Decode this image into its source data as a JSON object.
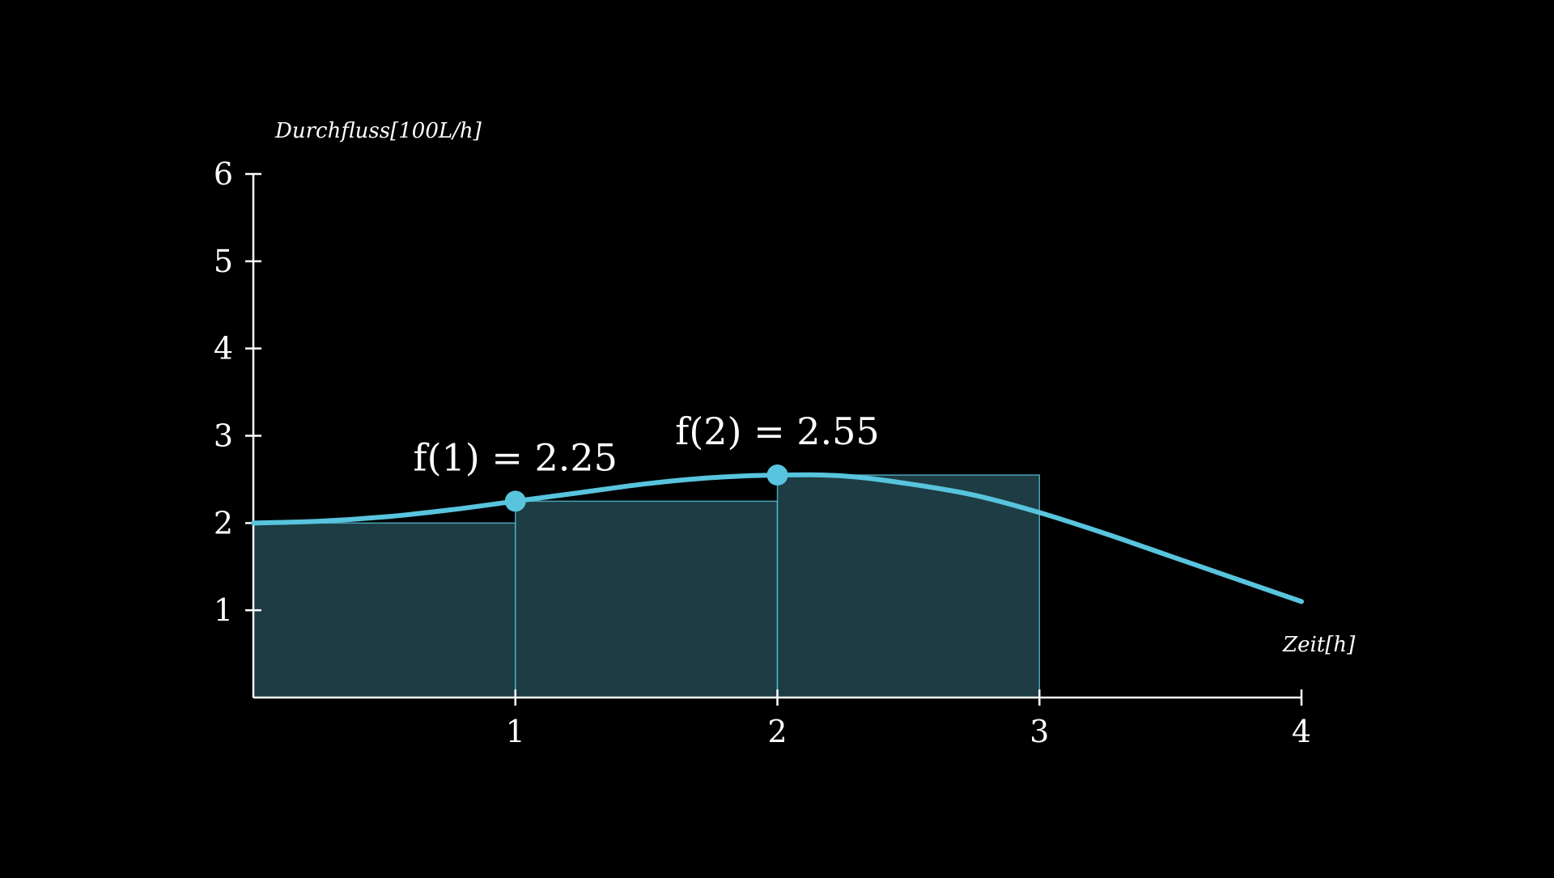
{
  "colors": {
    "background": "#000000",
    "axis": "#ffffff",
    "curve": "#58c4dd",
    "rect_fill": "#1d3c44",
    "rect_stroke": "#58c4dd"
  },
  "chart_data": {
    "type": "line",
    "xlabel": "Zeit[h]",
    "ylabel": "Durchfluss[100L/h]",
    "xlim": [
      0,
      4
    ],
    "ylim": [
      0,
      6
    ],
    "x_ticks": [
      {
        "value": 1,
        "label": "1"
      },
      {
        "value": 2,
        "label": "2"
      },
      {
        "value": 3,
        "label": "3"
      },
      {
        "value": 4,
        "label": "4"
      }
    ],
    "y_ticks": [
      {
        "value": 1,
        "label": "1"
      },
      {
        "value": 2,
        "label": "2"
      },
      {
        "value": 3,
        "label": "3"
      },
      {
        "value": 4,
        "label": "4"
      },
      {
        "value": 5,
        "label": "5"
      },
      {
        "value": 6,
        "label": "6"
      }
    ],
    "grid": false,
    "curve": {
      "x": [
        0,
        0.25,
        0.5,
        0.75,
        1,
        1.25,
        1.5,
        1.75,
        2,
        2.25,
        2.5,
        2.75,
        3,
        3.25,
        3.5,
        3.75,
        4
      ],
      "y": [
        2.0,
        2.02,
        2.07,
        2.15,
        2.25,
        2.35,
        2.45,
        2.52,
        2.55,
        2.54,
        2.45,
        2.32,
        2.12,
        1.88,
        1.62,
        1.36,
        1.1
      ]
    },
    "rectangles": [
      {
        "x0": 0,
        "x1": 1,
        "height": 2.0
      },
      {
        "x0": 1,
        "x1": 2,
        "height": 2.25
      },
      {
        "x0": 2,
        "x1": 3,
        "height": 2.55
      }
    ],
    "highlighted_points": [
      {
        "x": 1,
        "y": 2.25,
        "label": "f(1) = 2.25"
      },
      {
        "x": 2,
        "y": 2.55,
        "label": "f(2) = 2.55"
      }
    ]
  }
}
